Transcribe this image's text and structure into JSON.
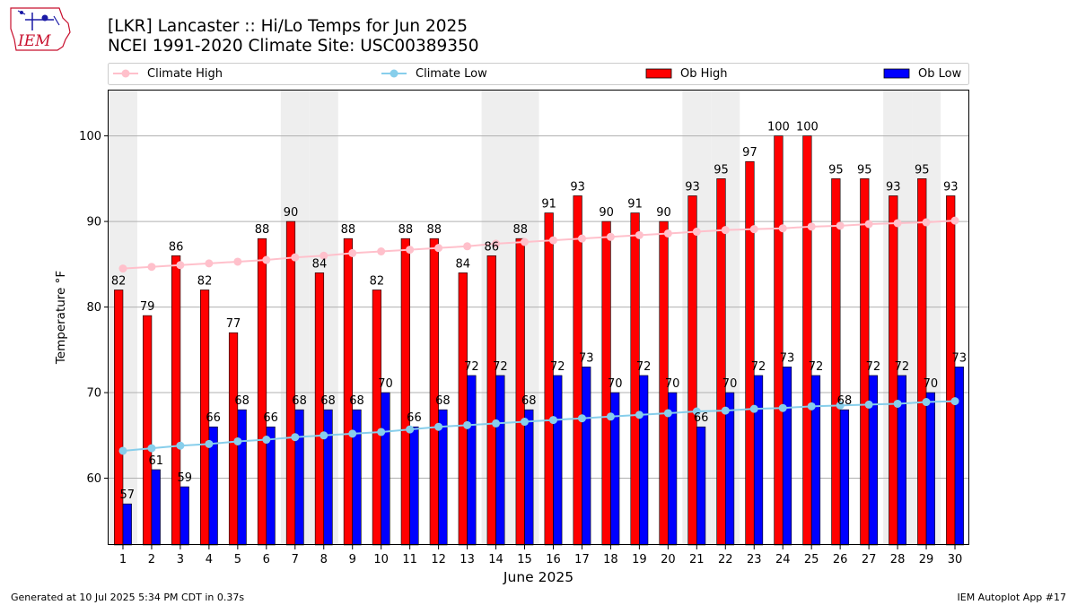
{
  "logo": {
    "text": "IEM"
  },
  "header": {
    "title_line1": "[LKR] Lancaster :: Hi/Lo Temps for Jun 2025",
    "title_line2": "NCEI 1991-2020 Climate Site: USC00389350"
  },
  "footer": {
    "generated": "Generated at 10 Jul 2025 5:34 PM CDT in 0.37s",
    "app": "IEM Autoplot App #17"
  },
  "colors": {
    "ob_high": "#ff0000",
    "ob_low": "#0000ff",
    "climate_high": "#ffc0cb",
    "climate_low": "#87ceeb",
    "weekend_band": "#eeeeee",
    "grid": "#b0b0b0"
  },
  "chart_data": {
    "type": "bar",
    "title": "[LKR] Lancaster :: Hi/Lo Temps for Jun 2025",
    "subtitle": "NCEI 1991-2020 Climate Site: USC00389350",
    "xlabel": "June 2025",
    "ylabel": "Temperature °F",
    "ylim": [
      52.2,
      105.3
    ],
    "yticks": [
      60,
      70,
      80,
      90,
      100
    ],
    "grid": true,
    "legend_position": "top",
    "categories": [
      "1",
      "2",
      "3",
      "4",
      "5",
      "6",
      "7",
      "8",
      "9",
      "10",
      "11",
      "12",
      "13",
      "14",
      "15",
      "16",
      "17",
      "18",
      "19",
      "20",
      "21",
      "22",
      "23",
      "24",
      "25",
      "26",
      "27",
      "28",
      "29",
      "30"
    ],
    "shaded_days": [
      1,
      7,
      8,
      14,
      15,
      21,
      22,
      28,
      29
    ],
    "series": [
      {
        "name": "Ob High",
        "kind": "bar",
        "values": [
          82,
          79,
          86,
          82,
          77,
          88,
          90,
          84,
          88,
          82,
          88,
          88,
          84,
          86,
          88,
          91,
          93,
          90,
          91,
          90,
          93,
          95,
          97,
          100,
          100,
          95,
          95,
          93,
          95,
          93
        ]
      },
      {
        "name": "Ob Low",
        "kind": "bar",
        "values": [
          57,
          61,
          59,
          66,
          68,
          66,
          68,
          68,
          68,
          70,
          66,
          68,
          72,
          72,
          68,
          72,
          73,
          70,
          72,
          70,
          66,
          70,
          72,
          73,
          72,
          68,
          72,
          72,
          70,
          73
        ]
      },
      {
        "name": "Climate High",
        "kind": "line",
        "values": [
          84.5,
          84.7,
          84.9,
          85.1,
          85.3,
          85.5,
          85.8,
          86.0,
          86.3,
          86.5,
          86.7,
          86.9,
          87.1,
          87.4,
          87.6,
          87.8,
          88.0,
          88.2,
          88.4,
          88.6,
          88.8,
          89.0,
          89.1,
          89.2,
          89.4,
          89.5,
          89.7,
          89.8,
          89.9,
          90.1
        ]
      },
      {
        "name": "Climate Low",
        "kind": "line",
        "values": [
          63.2,
          63.5,
          63.8,
          64.0,
          64.3,
          64.5,
          64.8,
          65.0,
          65.2,
          65.4,
          65.7,
          66.0,
          66.2,
          66.4,
          66.6,
          66.8,
          67.0,
          67.2,
          67.4,
          67.6,
          67.8,
          67.9,
          68.1,
          68.2,
          68.4,
          68.5,
          68.6,
          68.7,
          68.9,
          69.0
        ]
      }
    ]
  }
}
